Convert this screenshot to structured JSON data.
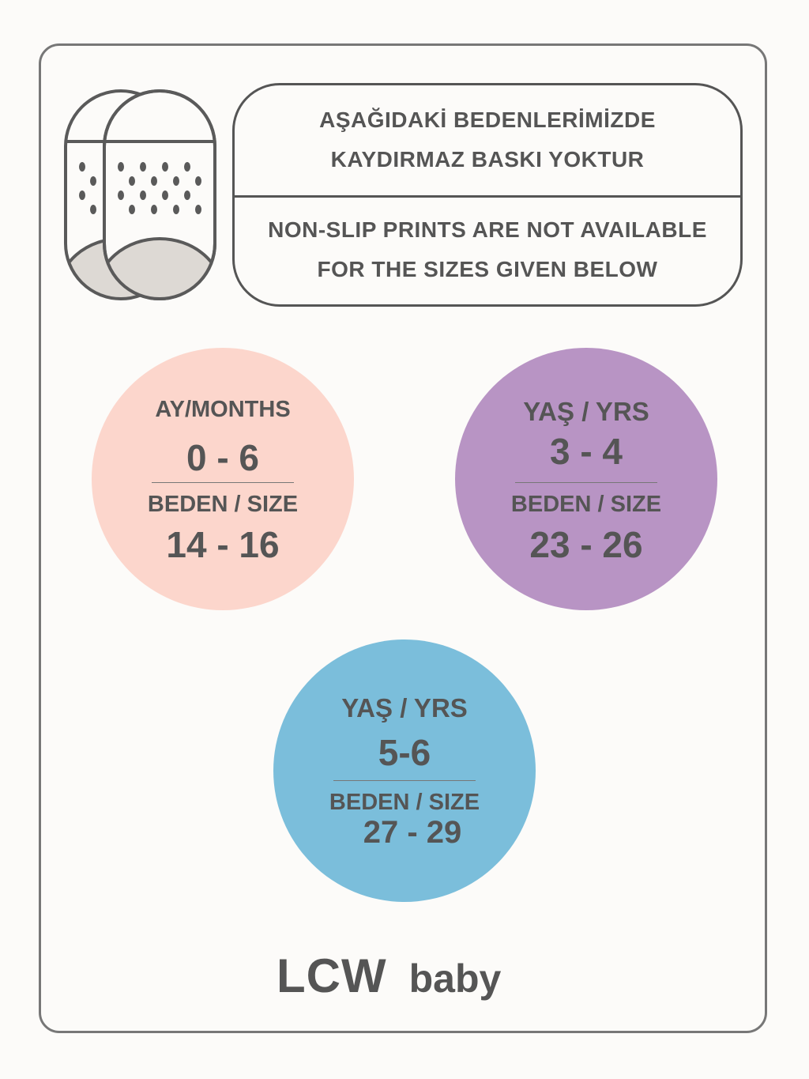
{
  "notice": {
    "tr_line1": "AŞAĞIDAKİ BEDENLERİMİZDE",
    "tr_line2": "KAYDIRMAZ BASKI YOKTUR",
    "en_line1": "NON-SLIP PRINTS ARE NOT AVAILABLE",
    "en_line2": "FOR THE SIZES GIVEN BELOW"
  },
  "icon": "non-slip-socks-icon",
  "sizes": [
    {
      "age_label": "AY/MONTHS",
      "age": "0 - 6",
      "size_label": "BEDEN / SIZE",
      "size": "14 - 16",
      "color": "#fcd6cc"
    },
    {
      "age_label": "YAŞ / YRS",
      "age": "3 - 4",
      "size_label": "BEDEN / SIZE",
      "size": "23 - 26",
      "color": "#b894c4"
    },
    {
      "age_label": "YAŞ / YRS",
      "age": "5-6",
      "size_label": "BEDEN / SIZE",
      "size": "27 - 29",
      "color": "#7bbedb"
    }
  ],
  "brand": {
    "name": "LCW",
    "sub": "baby"
  }
}
